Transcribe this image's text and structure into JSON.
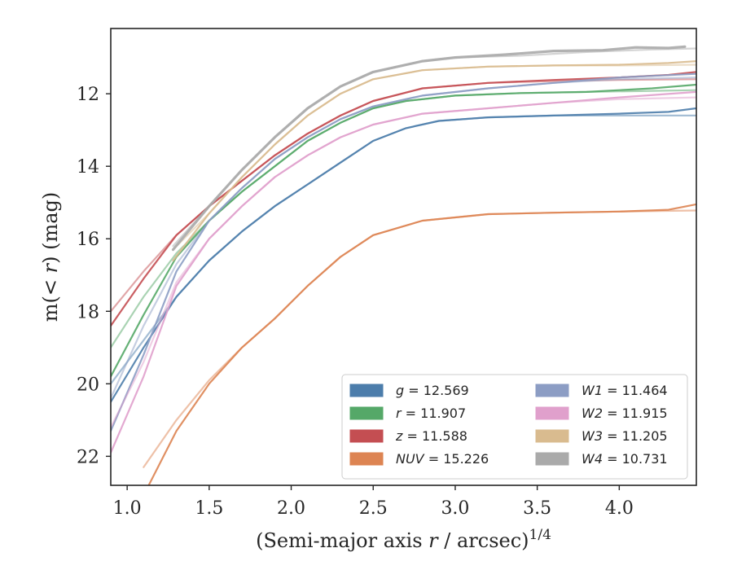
{
  "chart_data": {
    "type": "line",
    "xlabel": "(Semi-major axis r / arcsec)^{1/4}",
    "ylabel": "m(< r) (mag)",
    "xlim": [
      0.9,
      4.47
    ],
    "ylim": [
      22.8,
      10.2
    ],
    "y_inverted": true,
    "xticks": [
      1.0,
      1.5,
      2.0,
      2.5,
      3.0,
      3.5,
      4.0
    ],
    "xtick_labels": [
      "1.0",
      "1.5",
      "2.0",
      "2.5",
      "3.0",
      "3.5",
      "4.0"
    ],
    "yticks": [
      12,
      14,
      16,
      18,
      20,
      22
    ],
    "ytick_labels": [
      "12",
      "14",
      "16",
      "18",
      "20",
      "22"
    ],
    "grid": false,
    "legend_position": "lower-right",
    "legend_columns": 2,
    "series": [
      {
        "name": "g",
        "value": "12.569",
        "color": "#4c7dab",
        "model_x": [
          0.9,
          1.1,
          1.3,
          1.5,
          1.7,
          1.9,
          2.1,
          2.3,
          2.5,
          2.7,
          2.9,
          3.2,
          3.6,
          4.0,
          4.47
        ],
        "model_y": [
          20.0,
          18.8,
          17.6,
          16.6,
          15.8,
          15.1,
          14.5,
          13.9,
          13.3,
          12.95,
          12.75,
          12.65,
          12.6,
          12.6,
          12.6
        ],
        "x": [
          0.9,
          1.1,
          1.3,
          1.5,
          1.7,
          1.9,
          2.1,
          2.3,
          2.5,
          2.7,
          2.9,
          3.2,
          3.6,
          4.0,
          4.3,
          4.47
        ],
        "y": [
          20.5,
          19.0,
          17.6,
          16.6,
          15.8,
          15.1,
          14.5,
          13.9,
          13.3,
          12.95,
          12.75,
          12.65,
          12.6,
          12.55,
          12.5,
          12.4
        ]
      },
      {
        "name": "r",
        "value": "11.907",
        "color": "#55a868",
        "model_x": [
          0.9,
          1.1,
          1.3,
          1.5,
          1.7,
          1.9,
          2.1,
          2.3,
          2.5,
          2.7,
          3.0,
          3.4,
          3.8,
          4.2,
          4.47
        ],
        "model_y": [
          19.0,
          17.6,
          16.4,
          15.5,
          14.7,
          14.0,
          13.3,
          12.8,
          12.4,
          12.2,
          12.05,
          11.98,
          11.95,
          11.92,
          11.9
        ],
        "x": [
          0.9,
          1.1,
          1.3,
          1.5,
          1.7,
          1.9,
          2.1,
          2.3,
          2.5,
          2.7,
          3.0,
          3.4,
          3.8,
          4.2,
          4.47
        ],
        "y": [
          19.8,
          18.1,
          16.5,
          15.5,
          14.7,
          14.0,
          13.3,
          12.8,
          12.4,
          12.2,
          12.05,
          11.98,
          11.95,
          11.85,
          11.75
        ]
      },
      {
        "name": "z",
        "value": "11.588",
        "color": "#c44e52",
        "model_x": [
          0.9,
          1.1,
          1.3,
          1.5,
          1.7,
          1.9,
          2.1,
          2.3,
          2.5,
          2.8,
          3.2,
          3.6,
          4.0,
          4.47
        ],
        "model_y": [
          18.0,
          16.9,
          15.9,
          15.1,
          14.4,
          13.7,
          13.1,
          12.6,
          12.2,
          11.85,
          11.7,
          11.65,
          11.62,
          11.6
        ],
        "x": [
          0.9,
          1.1,
          1.3,
          1.5,
          1.7,
          1.9,
          2.1,
          2.3,
          2.5,
          2.8,
          3.2,
          3.6,
          4.0,
          4.3,
          4.47
        ],
        "y": [
          18.4,
          17.1,
          15.9,
          15.1,
          14.4,
          13.7,
          13.1,
          12.6,
          12.2,
          11.85,
          11.7,
          11.62,
          11.55,
          11.48,
          11.4
        ]
      },
      {
        "name": "NUV",
        "value": "15.226",
        "color": "#dd8452",
        "model_x": [
          1.1,
          1.3,
          1.5,
          1.7,
          1.9,
          2.1,
          2.3,
          2.5,
          2.8,
          3.2,
          3.6,
          4.0,
          4.47
        ],
        "model_y": [
          22.3,
          21.0,
          19.9,
          19.0,
          18.2,
          17.3,
          16.5,
          15.9,
          15.5,
          15.32,
          15.28,
          15.25,
          15.22
        ],
        "x": [
          1.12,
          1.3,
          1.5,
          1.7,
          1.9,
          2.1,
          2.3,
          2.5,
          2.8,
          3.2,
          3.6,
          4.0,
          4.3,
          4.47
        ],
        "y": [
          22.9,
          21.3,
          20.0,
          19.0,
          18.2,
          17.3,
          16.5,
          15.9,
          15.5,
          15.32,
          15.28,
          15.25,
          15.2,
          15.05
        ]
      },
      {
        "name": "W1",
        "value": "11.464",
        "color": "#8c9dc4",
        "model_x": [
          0.9,
          1.1,
          1.3,
          1.5,
          1.7,
          1.9,
          2.1,
          2.3,
          2.5,
          2.8,
          3.2,
          3.6,
          4.0,
          4.47
        ],
        "model_y": [
          20.4,
          18.4,
          16.7,
          15.5,
          14.6,
          13.8,
          13.2,
          12.7,
          12.35,
          12.05,
          11.85,
          11.7,
          11.6,
          11.55
        ],
        "x": [
          0.9,
          1.1,
          1.3,
          1.5,
          1.7,
          1.9,
          2.1,
          2.3,
          2.5,
          2.8,
          3.2,
          3.6,
          4.0,
          4.47
        ],
        "y": [
          21.3,
          19.2,
          16.9,
          15.5,
          14.6,
          13.8,
          13.2,
          12.7,
          12.35,
          12.05,
          11.85,
          11.7,
          11.55,
          11.45
        ]
      },
      {
        "name": "W2",
        "value": "11.915",
        "color": "#e0a0cc",
        "model_x": [
          0.9,
          1.1,
          1.3,
          1.5,
          1.7,
          1.9,
          2.1,
          2.3,
          2.5,
          2.8,
          3.2,
          3.6,
          4.0,
          4.47
        ],
        "model_y": [
          21.2,
          19.4,
          17.2,
          16.0,
          15.1,
          14.3,
          13.7,
          13.2,
          12.85,
          12.55,
          12.4,
          12.25,
          12.15,
          12.1
        ],
        "x": [
          0.9,
          1.1,
          1.3,
          1.5,
          1.7,
          1.9,
          2.1,
          2.3,
          2.5,
          2.8,
          3.2,
          3.6,
          4.0,
          4.47
        ],
        "y": [
          21.9,
          19.8,
          17.3,
          16.0,
          15.1,
          14.3,
          13.7,
          13.2,
          12.85,
          12.55,
          12.4,
          12.25,
          12.1,
          11.95
        ]
      },
      {
        "name": "W3",
        "value": "11.205",
        "color": "#d9bb8f",
        "model_x": [
          1.28,
          1.5,
          1.7,
          1.9,
          2.1,
          2.3,
          2.5,
          2.8,
          3.2,
          3.6,
          4.0,
          4.47
        ],
        "model_y": [
          16.3,
          15.3,
          14.3,
          13.4,
          12.6,
          12.0,
          11.6,
          11.35,
          11.25,
          11.22,
          11.22,
          11.2
        ],
        "x": [
          1.28,
          1.5,
          1.7,
          1.9,
          2.1,
          2.3,
          2.5,
          2.8,
          3.2,
          3.6,
          4.0,
          4.3,
          4.47
        ],
        "y": [
          16.6,
          15.3,
          14.3,
          13.4,
          12.6,
          12.0,
          11.6,
          11.35,
          11.25,
          11.22,
          11.2,
          11.15,
          11.1
        ]
      },
      {
        "name": "W4",
        "value": "10.731",
        "color": "#aaaaaa",
        "model_x": [
          1.28,
          1.5,
          1.7,
          1.9,
          2.1,
          2.3,
          2.5,
          2.8,
          3.0,
          3.4,
          3.8,
          4.2,
          4.47
        ],
        "model_y": [
          16.2,
          15.1,
          14.1,
          13.2,
          12.4,
          11.8,
          11.4,
          11.1,
          11.0,
          10.95,
          10.85,
          10.78,
          10.75
        ],
        "x": [
          1.28,
          1.5,
          1.7,
          1.9,
          2.1,
          2.3,
          2.5,
          2.8,
          3.0,
          3.3,
          3.6,
          3.9,
          4.1,
          4.3,
          4.4
        ],
        "y": [
          16.3,
          15.1,
          14.1,
          13.2,
          12.4,
          11.8,
          11.4,
          11.1,
          11.0,
          10.92,
          10.82,
          10.8,
          10.72,
          10.74,
          10.7
        ]
      }
    ]
  }
}
